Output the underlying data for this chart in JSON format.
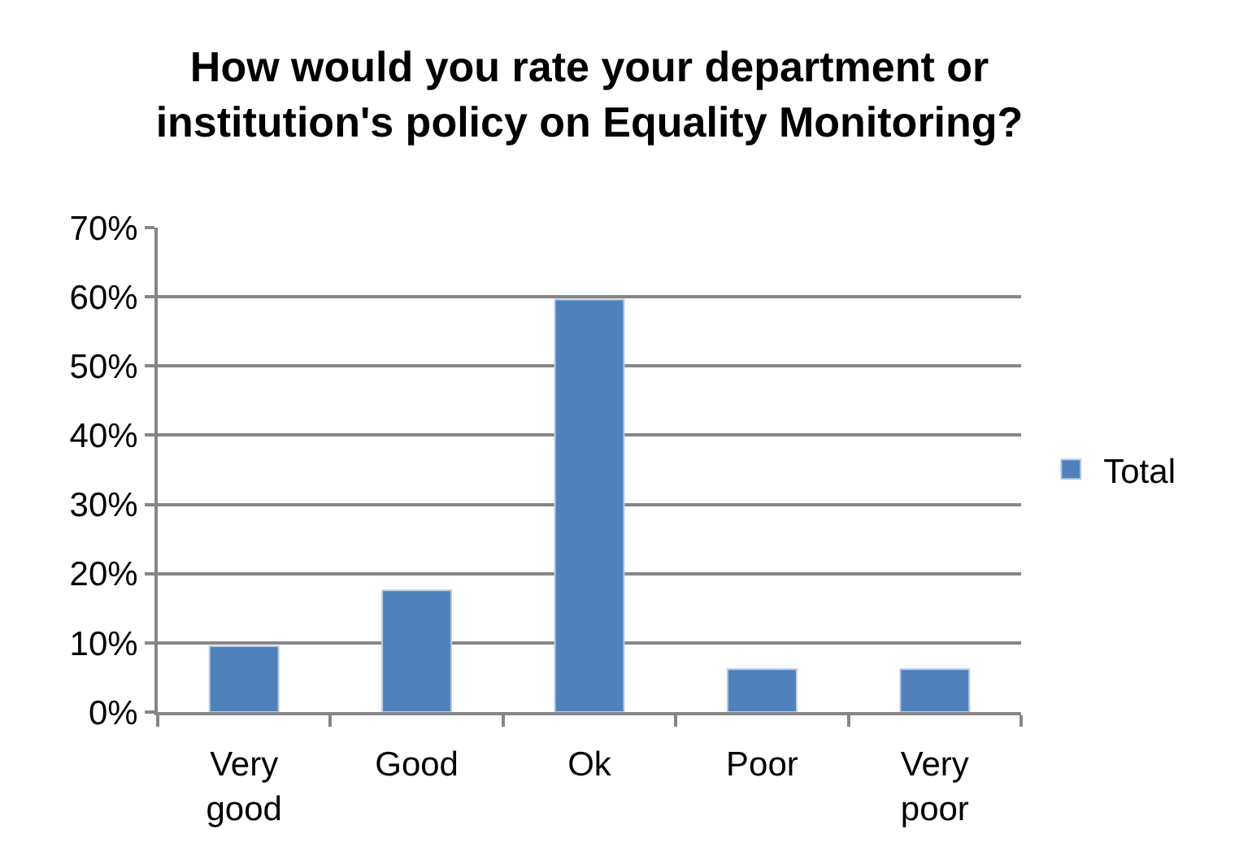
{
  "chart_data": {
    "type": "bar",
    "title": "How would you rate your department or institution's policy on Equality Monitoring?",
    "categories": [
      "Very good",
      "Good",
      "Ok",
      "Poor",
      "Very poor"
    ],
    "series": [
      {
        "name": "Total",
        "color": "#4f81bd",
        "values": [
          9.5,
          17.6,
          59.6,
          6.2,
          6.2
        ]
      }
    ],
    "ylim": [
      0,
      70
    ],
    "yticks": [
      {
        "value": 0,
        "label": "0%"
      },
      {
        "value": 10,
        "label": "10%"
      },
      {
        "value": 20,
        "label": "20%"
      },
      {
        "value": 30,
        "label": "30%"
      },
      {
        "value": 40,
        "label": "40%"
      },
      {
        "value": 50,
        "label": "50%"
      },
      {
        "value": 60,
        "label": "60%"
      },
      {
        "value": 70,
        "label": "70%"
      }
    ],
    "grid": "y",
    "legend": "right"
  }
}
